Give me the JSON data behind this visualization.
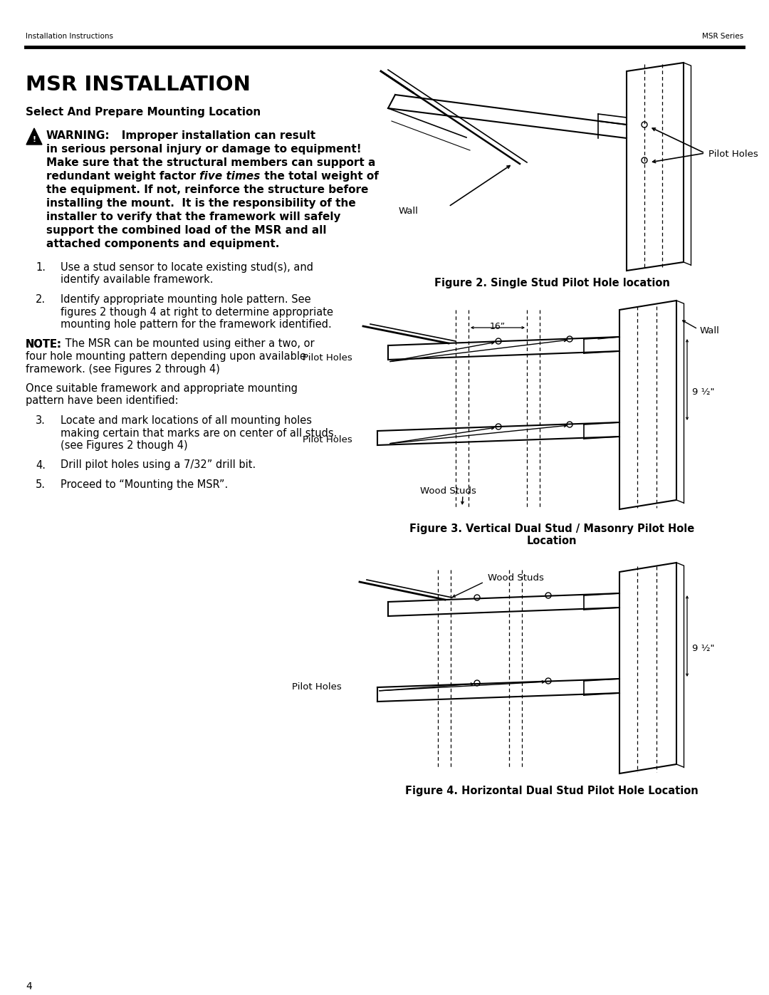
{
  "bg_color": "#ffffff",
  "header_left": "Installation Instructions",
  "header_right": "MSR Series",
  "footer_page": "4",
  "main_title": "MSR INSTALLATION",
  "subtitle": "Select And Prepare Mounting Location",
  "fig2_caption": "Figure 2. Single Stud Pilot Hole location",
  "fig3_caption_line1": "Figure 3. Vertical Dual Stud / Masonry Pilot Hole",
  "fig3_caption_line2": "Location",
  "fig4_caption": "Figure 4. Horizontal Dual Stud Pilot Hole Location",
  "label_wall": "Wall",
  "label_pilot_holes": "Pilot Holes",
  "label_wood_studs": "Wood Studs",
  "label_16in": "16”",
  "label_9half": "9 ½\""
}
